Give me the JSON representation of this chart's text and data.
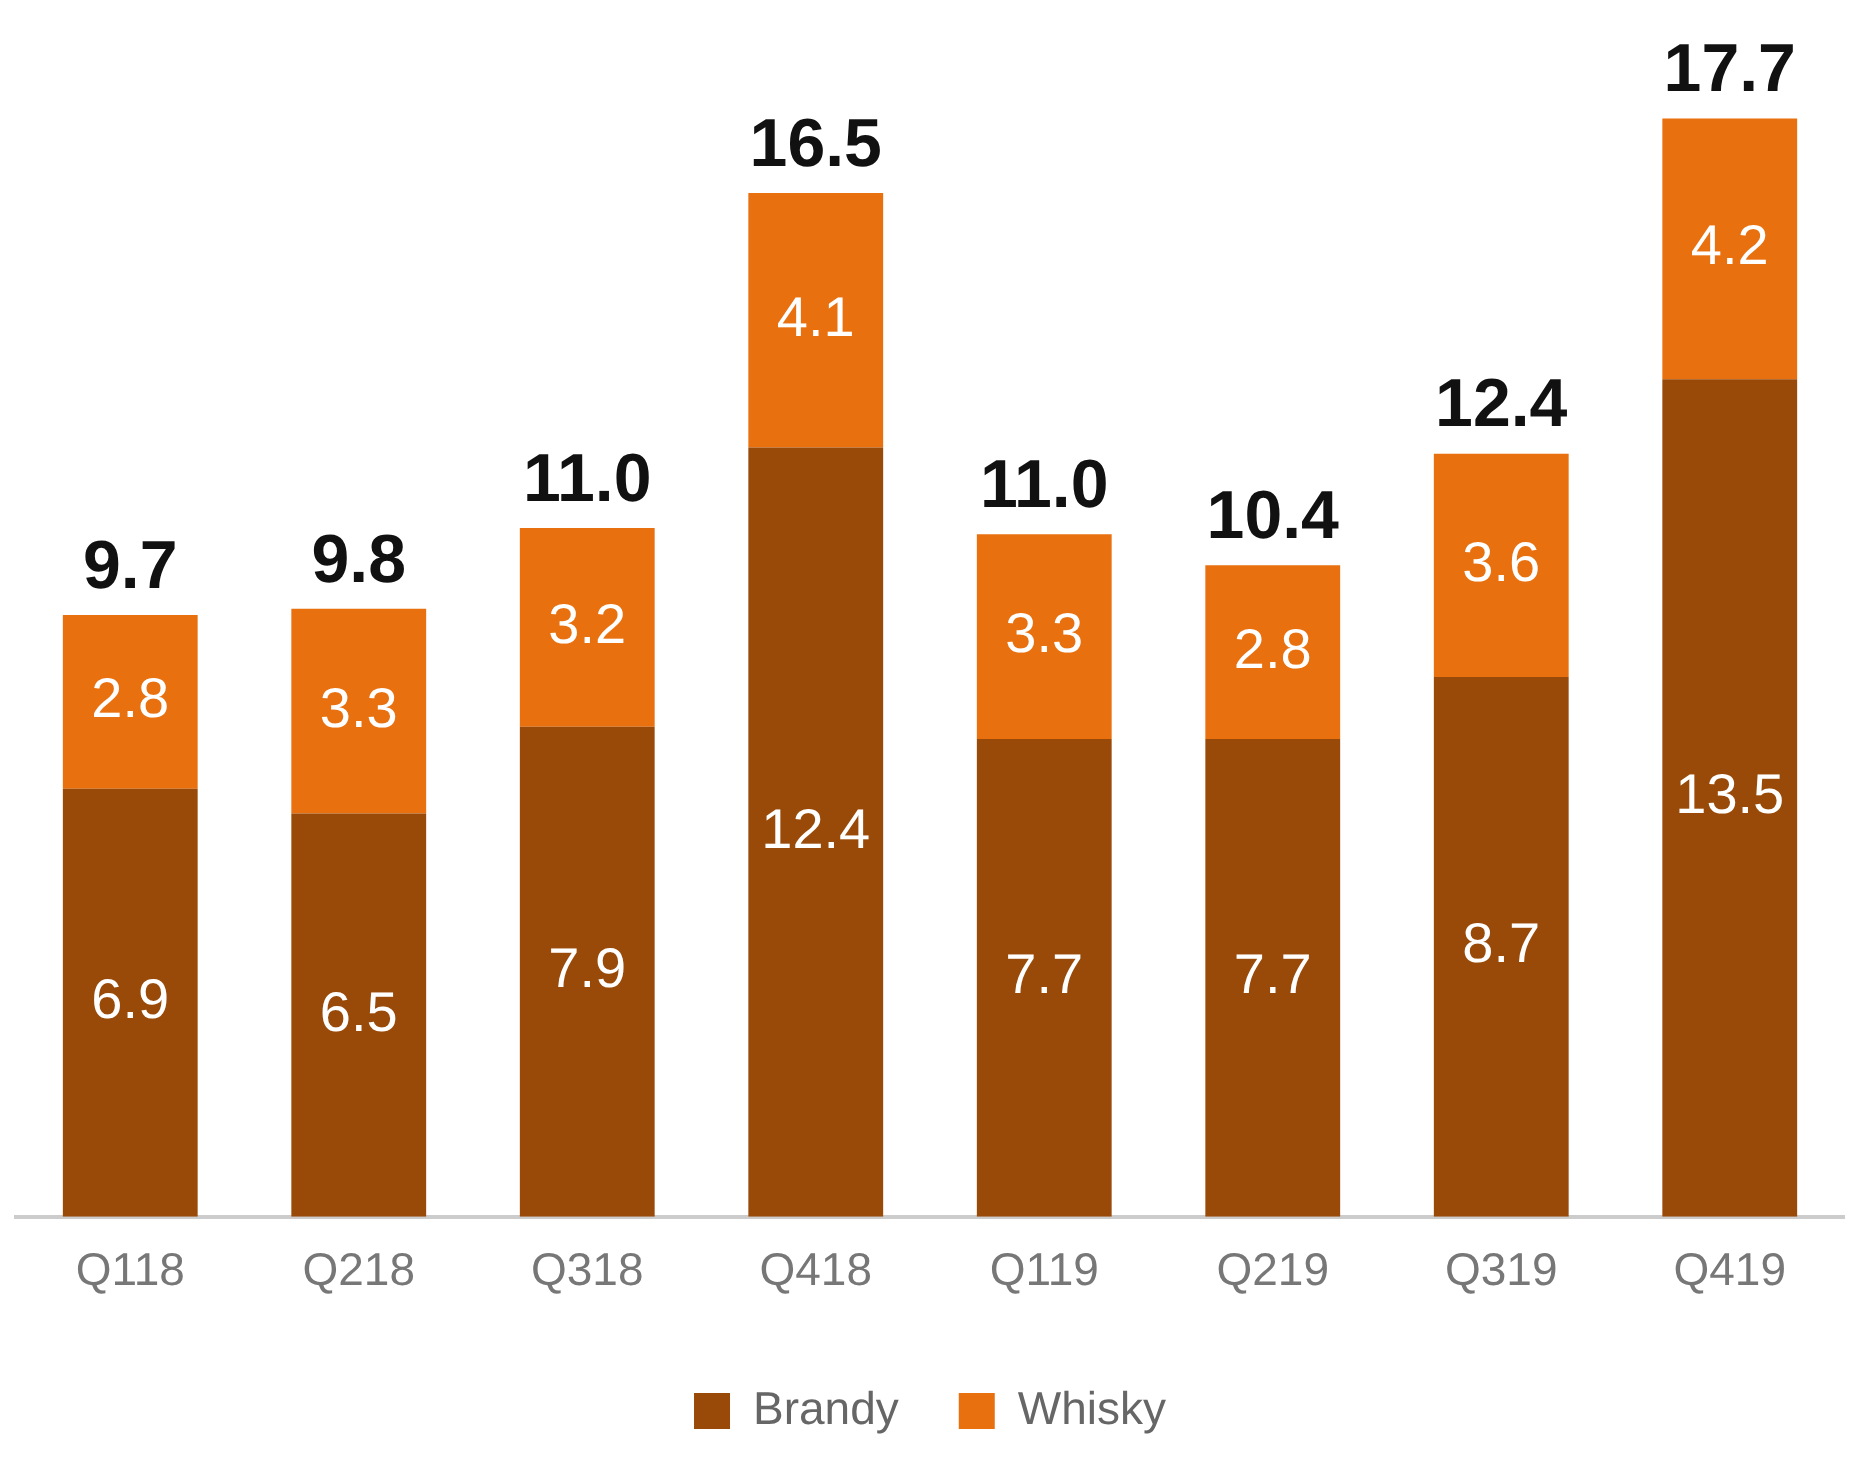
{
  "chart_data": {
    "type": "bar",
    "categories": [
      "Q118",
      "Q218",
      "Q318",
      "Q418",
      "Q119",
      "Q219",
      "Q319",
      "Q419"
    ],
    "series": [
      {
        "name": "Brandy",
        "color": "#9a4a08",
        "values": [
          6.9,
          6.5,
          7.9,
          12.4,
          7.7,
          7.7,
          8.7,
          13.5
        ]
      },
      {
        "name": "Whisky",
        "color": "#e8700e",
        "values": [
          2.8,
          3.3,
          3.2,
          4.1,
          3.3,
          2.8,
          3.6,
          4.2
        ]
      }
    ],
    "stacked": true,
    "data_labels": true,
    "totals": [
      "9.7",
      "9.8",
      "11.0",
      "16.5",
      "11.0",
      "10.4",
      "12.4",
      "17.7"
    ],
    "tick_labels": "x",
    "legend": "bottom"
  }
}
